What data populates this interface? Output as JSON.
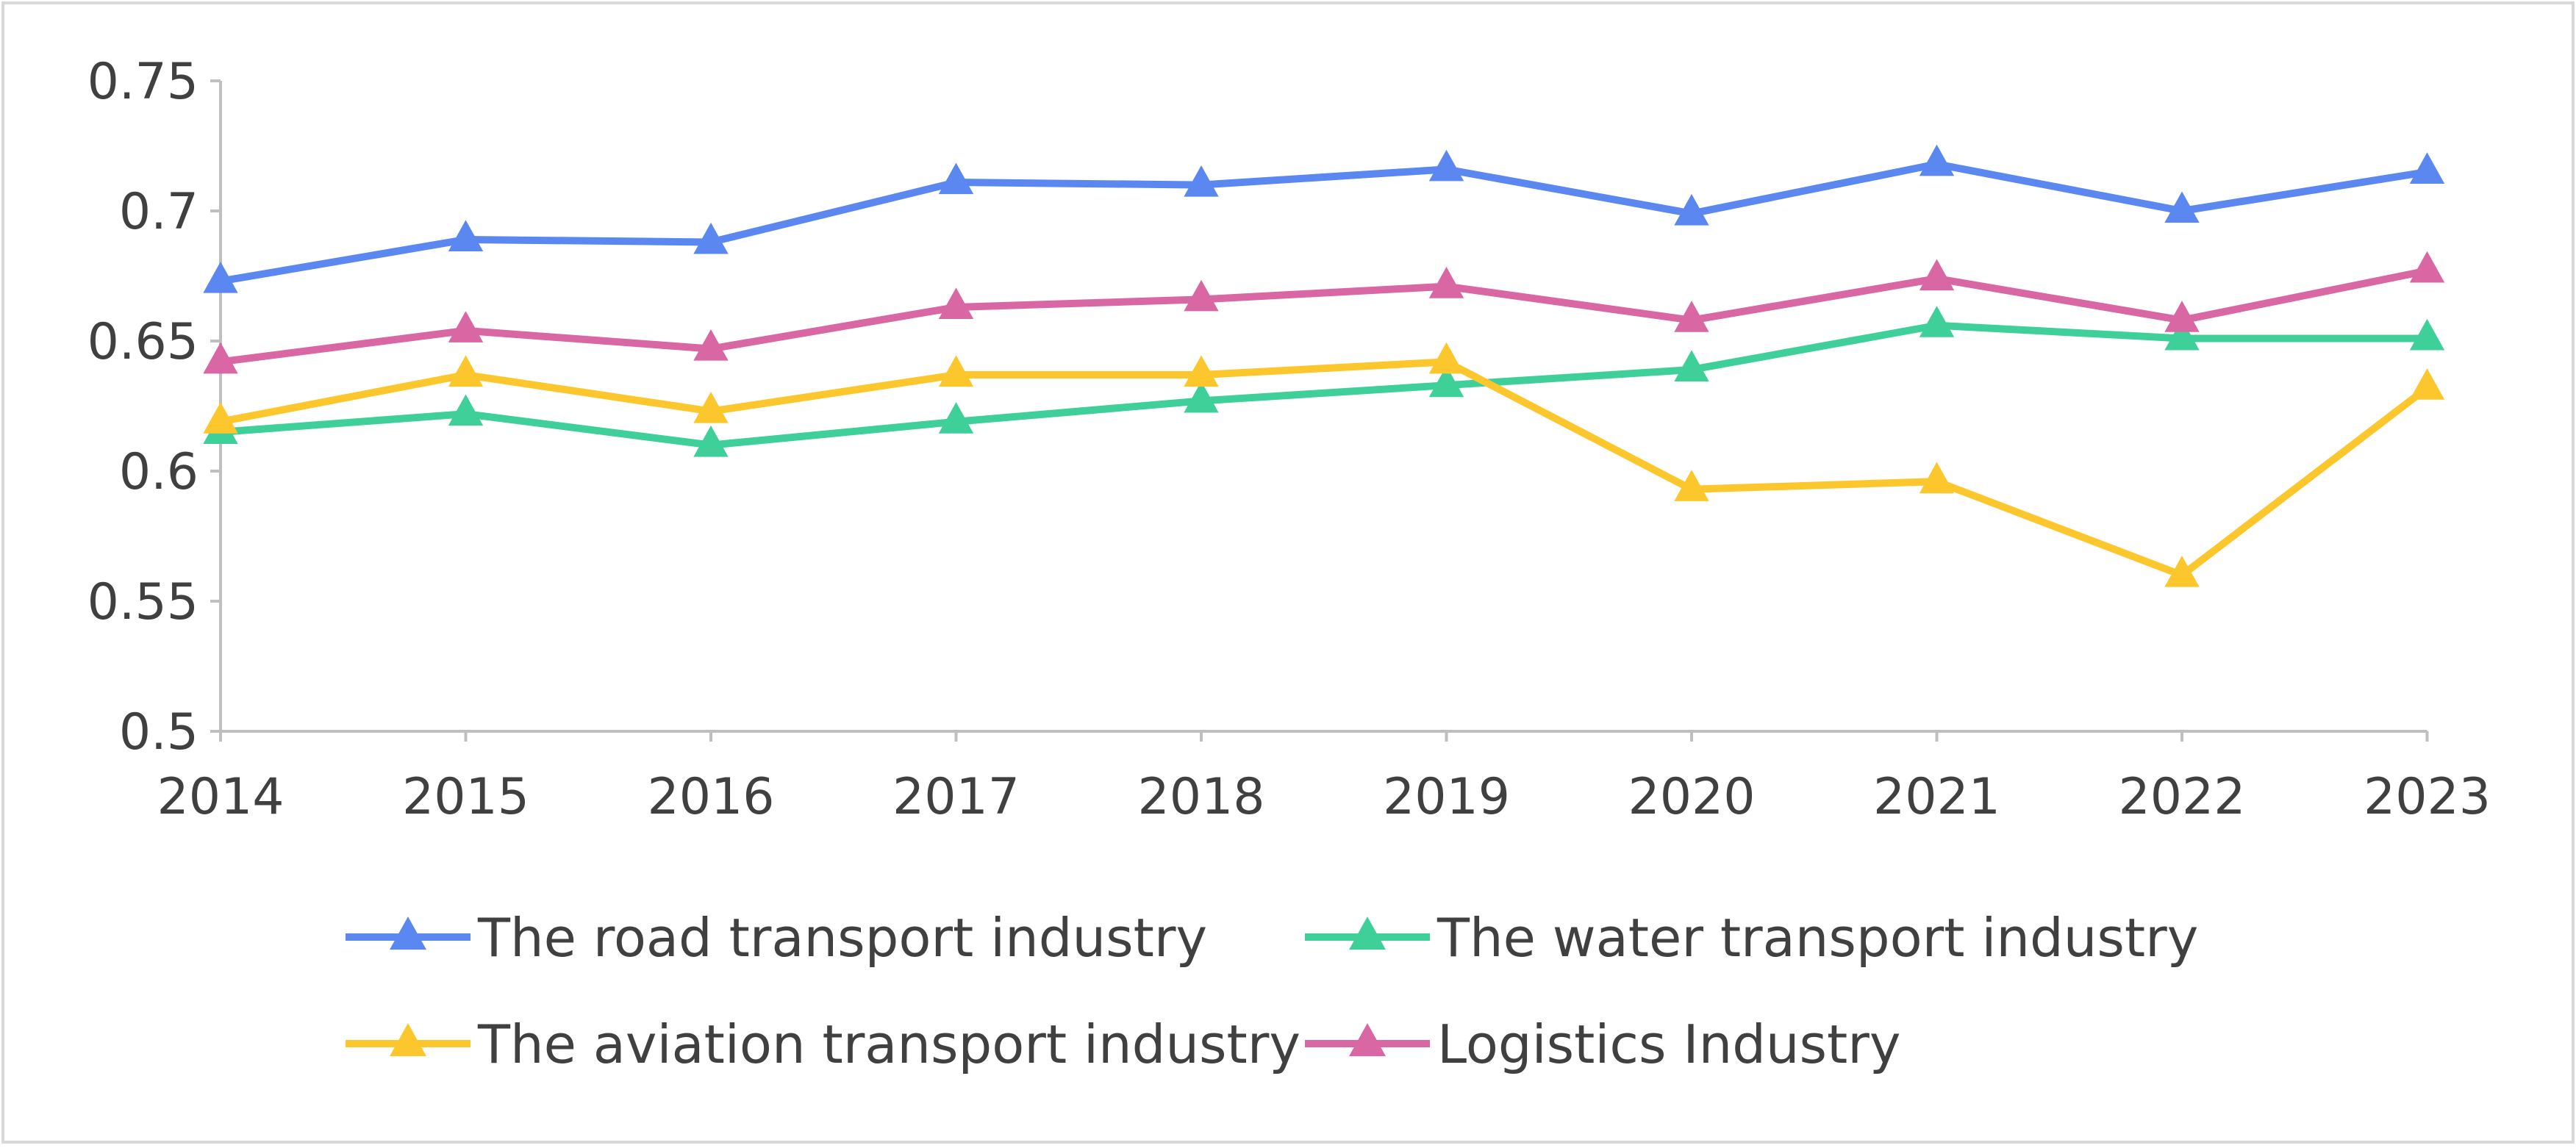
{
  "chart_data": {
    "type": "line",
    "title": "",
    "xlabel": "",
    "ylabel": "",
    "categories": [
      "2014",
      "2015",
      "2016",
      "2017",
      "2018",
      "2019",
      "2020",
      "2021",
      "2022",
      "2023"
    ],
    "ylim": [
      0.5,
      0.75
    ],
    "yticks": [
      0.5,
      0.55,
      0.6,
      0.65,
      0.7,
      0.75
    ],
    "ytick_labels": [
      "0.5",
      "0.55",
      "0.6",
      "0.65",
      "0.7",
      "0.75"
    ],
    "grid": false,
    "legend_position": "bottom",
    "series": [
      {
        "name": "The road transport industry",
        "color": "#5b87f0",
        "marker": "triangle",
        "values": [
          0.673,
          0.689,
          0.688,
          0.711,
          0.71,
          0.716,
          0.699,
          0.718,
          0.7,
          0.715
        ]
      },
      {
        "name": "The water transport industry",
        "color": "#3fd09a",
        "marker": "triangle",
        "values": [
          0.615,
          0.622,
          0.61,
          0.619,
          0.627,
          0.633,
          0.639,
          0.656,
          0.651,
          0.651
        ]
      },
      {
        "name": "The aviation transport industry",
        "color": "#fcc72c",
        "marker": "triangle",
        "values": [
          0.619,
          0.637,
          0.623,
          0.637,
          0.637,
          0.642,
          0.593,
          0.596,
          0.56,
          0.632
        ]
      },
      {
        "name": "Logistics Industry",
        "color": "#d867a3",
        "marker": "triangle",
        "values": [
          0.642,
          0.654,
          0.647,
          0.663,
          0.666,
          0.671,
          0.658,
          0.674,
          0.658,
          0.677
        ]
      }
    ]
  }
}
